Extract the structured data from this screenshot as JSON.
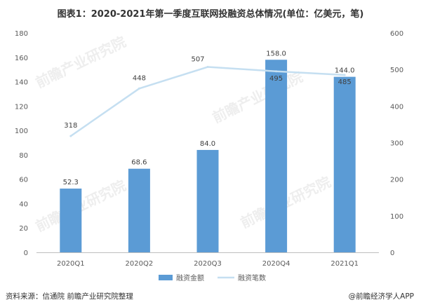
{
  "title": "图表1：2020-2021年第一季度互联网投融资总体情况(单位：亿美元，笔)",
  "source": "资料来源：信通院 前瞻产业研究院整理",
  "credit": "@前瞻经济学人APP",
  "watermark": "前瞻产业研究院",
  "chart_data": {
    "type": "bar",
    "categories": [
      "2020Q1",
      "2020Q2",
      "2020Q3",
      "2020Q4",
      "2021Q1"
    ],
    "series": [
      {
        "name": "融资金额",
        "type": "bar",
        "axis": "left",
        "values": [
          52.3,
          68.6,
          84.0,
          158.0,
          144.0
        ],
        "labels": [
          "52.3",
          "68.6",
          "84.0",
          "158.0",
          "144.0"
        ],
        "color": "#5b9bd5"
      },
      {
        "name": "融资笔数",
        "type": "line",
        "axis": "right",
        "values": [
          318,
          448,
          507,
          495,
          485
        ],
        "labels": [
          "318",
          "448",
          "507",
          "495",
          "485"
        ],
        "color": "#c5dff1"
      }
    ],
    "y_left": {
      "min": 0,
      "max": 180,
      "ticks": [
        "0",
        "20",
        "40",
        "60",
        "80",
        "100",
        "120",
        "140",
        "160",
        "180"
      ]
    },
    "y_right": {
      "min": 0,
      "max": 600,
      "ticks": [
        "0",
        "100",
        "200",
        "300",
        "400",
        "500",
        "600"
      ]
    },
    "legend_position": "bottom",
    "grid": false
  }
}
